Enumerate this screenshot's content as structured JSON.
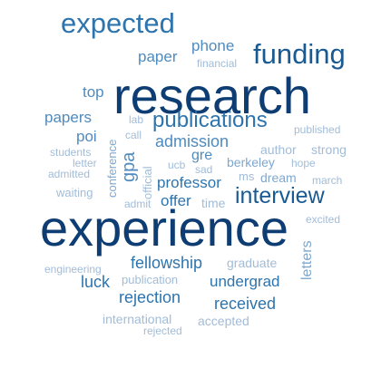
{
  "words": [
    {
      "id": "research",
      "text": "research",
      "colors": "#0d3d73"
    },
    {
      "id": "experience",
      "text": "experience",
      "colors": "#0d3d73"
    },
    {
      "id": "expected",
      "text": "expected",
      "colors": "#2e74ad"
    },
    {
      "id": "funding",
      "text": "funding",
      "colors": "#1a5a92"
    },
    {
      "id": "interview",
      "text": "interview",
      "colors": "#1a5a92"
    },
    {
      "id": "publications",
      "text": "publications",
      "colors": "#2e74ad"
    },
    {
      "id": "phone",
      "text": "phone",
      "colors": "#4f8bbf"
    },
    {
      "id": "paper",
      "text": "paper",
      "colors": "#4f8bbf"
    },
    {
      "id": "financial",
      "text": "financial",
      "colors": "#a1bcd8"
    },
    {
      "id": "top",
      "text": "top",
      "colors": "#4f8bbf"
    },
    {
      "id": "papers",
      "text": "papers",
      "colors": "#4f8bbf"
    },
    {
      "id": "lab",
      "text": "lab",
      "colors": "#a1bcd8"
    },
    {
      "id": "published",
      "text": "published",
      "colors": "#a1bcd8"
    },
    {
      "id": "poi",
      "text": "poi",
      "colors": "#4f8bbf"
    },
    {
      "id": "call",
      "text": "call",
      "colors": "#a1bcd8"
    },
    {
      "id": "admission",
      "text": "admission",
      "colors": "#4f8bbf"
    },
    {
      "id": "students",
      "text": "students",
      "colors": "#a1bcd8"
    },
    {
      "id": "letter",
      "text": "letter",
      "colors": "#a1bcd8"
    },
    {
      "id": "admitted",
      "text": "admitted",
      "colors": "#a1bcd8"
    },
    {
      "id": "waiting",
      "text": "waiting",
      "colors": "#a1bcd8"
    },
    {
      "id": "conference",
      "text": "conference",
      "colors": "#7ea7cf"
    },
    {
      "id": "gpa",
      "text": "gpa",
      "colors": "#4f8bbf"
    },
    {
      "id": "official",
      "text": "official",
      "colors": "#a1bcd8"
    },
    {
      "id": "ucb",
      "text": "ucb",
      "colors": "#a1bcd8"
    },
    {
      "id": "gre",
      "text": "gre",
      "colors": "#4f8bbf"
    },
    {
      "id": "sad",
      "text": "sad",
      "colors": "#a1bcd8"
    },
    {
      "id": "author",
      "text": "author",
      "colors": "#a1bcd8"
    },
    {
      "id": "strong",
      "text": "strong",
      "colors": "#a1bcd8"
    },
    {
      "id": "berkeley",
      "text": "berkeley",
      "colors": "#7ea7cf"
    },
    {
      "id": "hope",
      "text": "hope",
      "colors": "#a1bcd8"
    },
    {
      "id": "ms",
      "text": "ms",
      "colors": "#a1bcd8"
    },
    {
      "id": "dream",
      "text": "dream",
      "colors": "#7ea7cf"
    },
    {
      "id": "march",
      "text": "march",
      "colors": "#a1bcd8"
    },
    {
      "id": "professor",
      "text": "professor",
      "colors": "#2e74ad"
    },
    {
      "id": "admit",
      "text": "admit",
      "colors": "#a1bcd8"
    },
    {
      "id": "offer",
      "text": "offer",
      "colors": "#2e74ad"
    },
    {
      "id": "time",
      "text": "time",
      "colors": "#a1bcd8"
    },
    {
      "id": "excited",
      "text": "excited",
      "colors": "#a1bcd8"
    },
    {
      "id": "fellowship",
      "text": "fellowship",
      "colors": "#2e74ad"
    },
    {
      "id": "graduate",
      "text": "graduate",
      "colors": "#a1bcd8"
    },
    {
      "id": "letters",
      "text": "letters",
      "colors": "#7ea7cf"
    },
    {
      "id": "engineering",
      "text": "engineering",
      "colors": "#a1bcd8"
    },
    {
      "id": "publication",
      "text": "publication",
      "colors": "#a1bcd8"
    },
    {
      "id": "luck",
      "text": "luck",
      "colors": "#2e74ad"
    },
    {
      "id": "undergrad",
      "text": "undergrad",
      "colors": "#2e74ad"
    },
    {
      "id": "rejection",
      "text": "rejection",
      "colors": "#2e74ad"
    },
    {
      "id": "received",
      "text": "received",
      "colors": "#2e74ad"
    },
    {
      "id": "international",
      "text": "international",
      "colors": "#a1bcd8"
    },
    {
      "id": "accepted",
      "text": "accepted",
      "colors": "#a1bcd8"
    },
    {
      "id": "rejected",
      "text": "rejected",
      "colors": "#a1bcd8"
    }
  ]
}
